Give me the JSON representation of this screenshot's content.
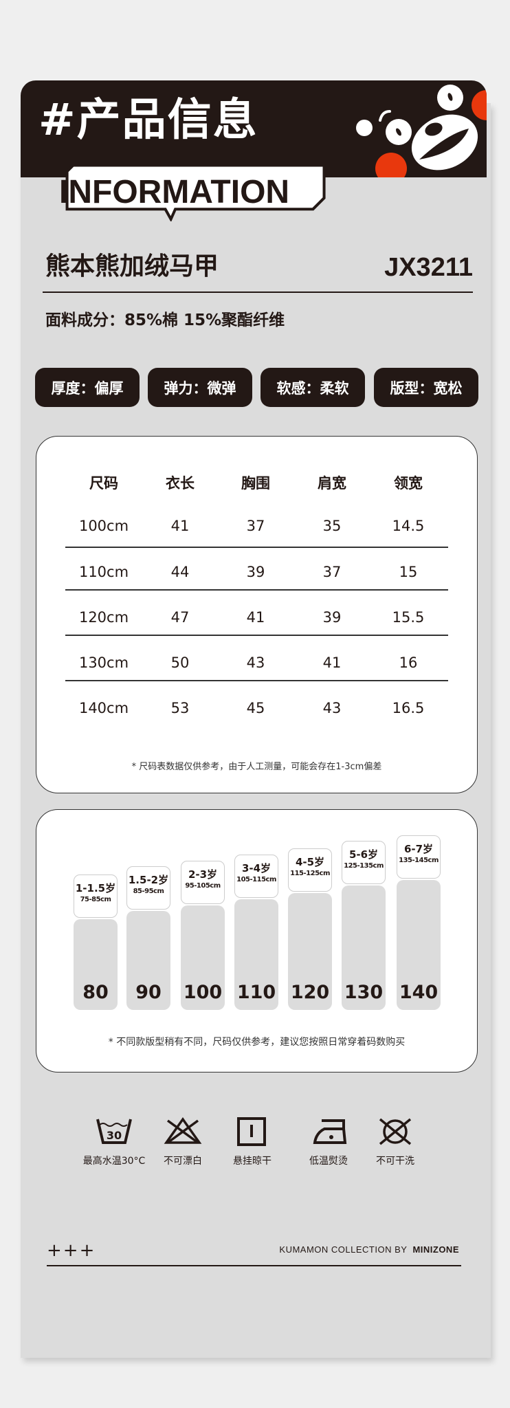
{
  "header": {
    "title": "#产品信息",
    "badge": "INFORMATION"
  },
  "colors": {
    "dark": "#231815",
    "red": "#e8380d",
    "panel": "#dcdcdc"
  },
  "product": {
    "name": "熊本熊加绒马甲",
    "code": "JX3211",
    "fabric": "面料成分：85%棉  15%聚酯纤维"
  },
  "tags": [
    "厚度：偏厚",
    "弹力：微弹",
    "软感：柔软",
    "版型：宽松"
  ],
  "size_table": {
    "headers": [
      "尺码",
      "衣长",
      "胸围",
      "肩宽",
      "领宽"
    ],
    "rows": [
      [
        "100cm",
        "41",
        "37",
        "35",
        "14.5"
      ],
      [
        "110cm",
        "44",
        "39",
        "37",
        "15"
      ],
      [
        "120cm",
        "47",
        "41",
        "39",
        "15.5"
      ],
      [
        "130cm",
        "50",
        "43",
        "41",
        "16"
      ],
      [
        "140cm",
        "53",
        "45",
        "43",
        "16.5"
      ]
    ],
    "note": "* 尺码表数据仅供参考，由于人工测量，可能会存在1-3cm偏差"
  },
  "age_chart": {
    "items": [
      {
        "age": "1-1.5岁",
        "height": "75-85cm",
        "size": "80"
      },
      {
        "age": "1.5-2岁",
        "height": "85-95cm",
        "size": "90"
      },
      {
        "age": "2-3岁",
        "height": "95-105cm",
        "size": "100"
      },
      {
        "age": "3-4岁",
        "height": "105-115cm",
        "size": "110"
      },
      {
        "age": "4-5岁",
        "height": "115-125cm",
        "size": "120"
      },
      {
        "age": "5-6岁",
        "height": "125-135cm",
        "size": "130"
      },
      {
        "age": "6-7岁",
        "height": "135-145cm",
        "size": "140"
      }
    ],
    "note": "* 不同款版型稍有不同，尺码仅供参考，建议您按照日常穿着码数购买"
  },
  "care": [
    {
      "icon": "wash-30-icon",
      "label": "最高水温30°C",
      "temp": "30"
    },
    {
      "icon": "no-bleach-icon",
      "label": "不可漂白"
    },
    {
      "icon": "hang-dry-icon",
      "label": "悬挂晾干"
    },
    {
      "icon": "low-iron-icon",
      "label": "低温熨烫"
    },
    {
      "icon": "no-dry-clean-icon",
      "label": "不可干洗"
    }
  ],
  "footer": {
    "mark": "+++",
    "brand_prefix": "KUMAMON COLLECTION BY",
    "brand_name": "MINIZONE"
  }
}
